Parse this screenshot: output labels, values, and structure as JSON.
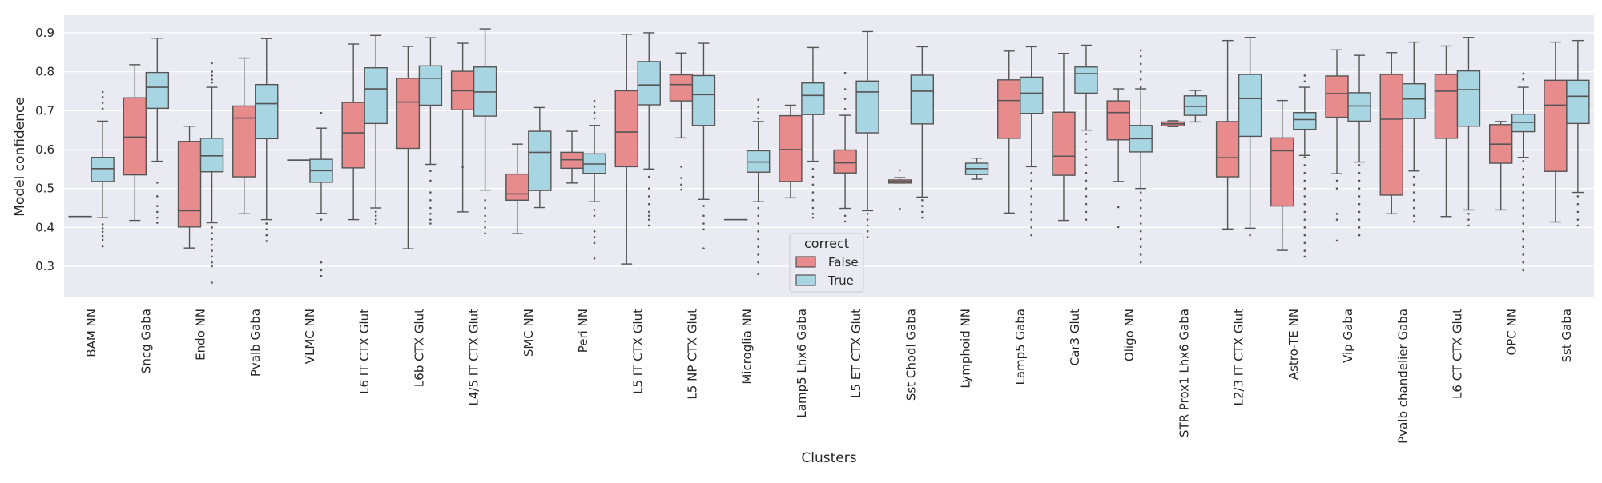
{
  "chart_data": {
    "type": "box",
    "title": "",
    "xlabel": "Clusters",
    "ylabel": "Model confidence",
    "ylim": [
      0.22,
      0.945
    ],
    "yticks": [
      0.3,
      0.4,
      0.5,
      0.6,
      0.7,
      0.8,
      0.9
    ],
    "grid": true,
    "legend": {
      "title": "correct",
      "placement": "lower-center",
      "entries": [
        {
          "label": "False",
          "color": "#e88b8d"
        },
        {
          "label": "True",
          "color": "#a8d5e2"
        }
      ]
    },
    "categories": [
      "BAM NN",
      "Sncg Gaba",
      "Endo NN",
      "Pvalb Gaba",
      "VLMC NN",
      "L6 IT CTX Glut",
      "L6b CTX Glut",
      "L4/5 IT CTX Glut",
      "SMC NN",
      "Peri NN",
      "L5 IT CTX Glut",
      "L5 NP CTX Glut",
      "Microglia NN",
      "Lamp5 Lhx6 Gaba",
      "L5 ET CTX Glut",
      "Sst Chodl Gaba",
      "Lymphoid NN",
      "Lamp5 Gaba",
      "Car3 Glut",
      "Oligo NN",
      "STR Prox1 Lhx6 Gaba",
      "L2/3 IT CTX Glut",
      "Astro-TE NN",
      "Vip Gaba",
      "Pvalb chandelier Gaba",
      "L6 CT CTX Glut",
      "OPC NN",
      "Sst Gaba"
    ],
    "series": [
      {
        "name": "False",
        "color": "#e88b8d",
        "boxes": [
          {
            "whislo": 0.428,
            "q1": 0.428,
            "med": 0.428,
            "q3": 0.428,
            "whishi": 0.428,
            "fliers": []
          },
          {
            "whislo": 0.418,
            "q1": 0.535,
            "med": 0.632,
            "q3": 0.733,
            "whishi": 0.818,
            "fliers": []
          },
          {
            "whislo": 0.347,
            "q1": 0.401,
            "med": 0.443,
            "q3": 0.621,
            "whishi": 0.66,
            "fliers": []
          },
          {
            "whislo": 0.435,
            "q1": 0.53,
            "med": 0.681,
            "q3": 0.712,
            "whishi": 0.835,
            "fliers": []
          },
          {
            "whislo": 0.573,
            "q1": 0.573,
            "med": 0.573,
            "q3": 0.573,
            "whishi": 0.573,
            "fliers": []
          },
          {
            "whislo": 0.42,
            "q1": 0.553,
            "med": 0.643,
            "q3": 0.721,
            "whishi": 0.871,
            "fliers": []
          },
          {
            "whislo": 0.345,
            "q1": 0.603,
            "med": 0.722,
            "q3": 0.783,
            "whishi": 0.865,
            "fliers": []
          },
          {
            "whislo": 0.44,
            "q1": 0.702,
            "med": 0.751,
            "q3": 0.801,
            "whishi": 0.873,
            "fliers": [
              0.555
            ]
          },
          {
            "whislo": 0.384,
            "q1": 0.47,
            "med": 0.486,
            "q3": 0.537,
            "whishi": 0.614,
            "fliers": []
          },
          {
            "whislo": 0.514,
            "q1": 0.552,
            "med": 0.574,
            "q3": 0.593,
            "whishi": 0.647,
            "fliers": []
          },
          {
            "whislo": 0.306,
            "q1": 0.556,
            "med": 0.645,
            "q3": 0.751,
            "whishi": 0.896,
            "fliers": []
          },
          {
            "whislo": 0.63,
            "q1": 0.725,
            "med": 0.767,
            "q3": 0.792,
            "whishi": 0.848,
            "fliers": [
              0.556,
              0.527,
              0.51,
              0.497
            ]
          },
          {
            "whislo": 0.42,
            "q1": 0.42,
            "med": 0.42,
            "q3": 0.42,
            "whishi": 0.42,
            "fliers": []
          },
          {
            "whislo": 0.476,
            "q1": 0.518,
            "med": 0.6,
            "q3": 0.687,
            "whishi": 0.714,
            "fliers": []
          },
          {
            "whislo": 0.449,
            "q1": 0.54,
            "med": 0.566,
            "q3": 0.599,
            "whishi": 0.688,
            "fliers": [
              0.797,
              0.755,
              0.73,
              0.704,
              0.43,
              0.415
            ]
          },
          {
            "whislo": 0.514,
            "q1": 0.514,
            "med": 0.518,
            "q3": 0.522,
            "whishi": 0.528,
            "fliers": [
              0.547,
              0.448
            ]
          },
          null,
          {
            "whislo": 0.437,
            "q1": 0.629,
            "med": 0.726,
            "q3": 0.779,
            "whishi": 0.853,
            "fliers": []
          },
          {
            "whislo": 0.418,
            "q1": 0.534,
            "med": 0.583,
            "q3": 0.696,
            "whishi": 0.847,
            "fliers": []
          },
          {
            "whislo": 0.518,
            "q1": 0.625,
            "med": 0.695,
            "q3": 0.725,
            "whishi": 0.756,
            "fliers": [
              0.452,
              0.401
            ]
          },
          {
            "whislo": 0.659,
            "q1": 0.661,
            "med": 0.666,
            "q3": 0.671,
            "whishi": 0.674,
            "fliers": []
          },
          {
            "whislo": 0.396,
            "q1": 0.53,
            "med": 0.579,
            "q3": 0.672,
            "whishi": 0.88,
            "fliers": []
          },
          {
            "whislo": 0.341,
            "q1": 0.455,
            "med": 0.597,
            "q3": 0.63,
            "whishi": 0.726,
            "fliers": []
          },
          {
            "whislo": 0.538,
            "q1": 0.683,
            "med": 0.744,
            "q3": 0.789,
            "whishi": 0.856,
            "fliers": [
              0.52,
              0.5,
              0.435,
              0.42,
              0.366
            ]
          },
          {
            "whislo": 0.435,
            "q1": 0.483,
            "med": 0.678,
            "q3": 0.793,
            "whishi": 0.849,
            "fliers": []
          },
          {
            "whislo": 0.428,
            "q1": 0.629,
            "med": 0.75,
            "q3": 0.793,
            "whishi": 0.866,
            "fliers": []
          },
          {
            "whislo": 0.445,
            "q1": 0.565,
            "med": 0.614,
            "q3": 0.664,
            "whishi": 0.672,
            "fliers": []
          },
          {
            "whislo": 0.414,
            "q1": 0.544,
            "med": 0.714,
            "q3": 0.778,
            "whishi": 0.876,
            "fliers": []
          }
        ]
      },
      {
        "name": "True",
        "color": "#a8d5e2",
        "boxes": [
          {
            "whislo": 0.425,
            "q1": 0.518,
            "med": 0.551,
            "q3": 0.58,
            "whishi": 0.673,
            "fliers": [
              0.748,
              0.735,
              0.72,
              0.705,
              0.408,
              0.398,
              0.389,
              0.378,
              0.368,
              0.351
            ]
          },
          {
            "whislo": 0.57,
            "q1": 0.706,
            "med": 0.76,
            "q3": 0.798,
            "whishi": 0.886,
            "fliers": [
              0.515,
              0.48,
              0.455,
              0.44,
              0.425,
              0.412
            ]
          },
          {
            "whislo": 0.412,
            "q1": 0.543,
            "med": 0.584,
            "q3": 0.629,
            "whishi": 0.76,
            "fliers": [
              0.822,
              0.8,
              0.79,
              0.78,
              0.772,
              0.4,
              0.385,
              0.37,
              0.355,
              0.34,
              0.325,
              0.31,
              0.3,
              0.258
            ]
          },
          {
            "whislo": 0.42,
            "q1": 0.628,
            "med": 0.718,
            "q3": 0.767,
            "whishi": 0.885,
            "fliers": [
              0.41,
              0.395,
              0.38,
              0.365
            ]
          },
          {
            "whislo": 0.436,
            "q1": 0.516,
            "med": 0.546,
            "q3": 0.575,
            "whishi": 0.655,
            "fliers": [
              0.694,
              0.42,
              0.31,
              0.29,
              0.275
            ]
          },
          {
            "whislo": 0.45,
            "q1": 0.667,
            "med": 0.756,
            "q3": 0.81,
            "whishi": 0.893,
            "fliers": [
              0.44,
              0.43,
              0.42,
              0.41
            ]
          },
          {
            "whislo": 0.562,
            "q1": 0.714,
            "med": 0.783,
            "q3": 0.815,
            "whishi": 0.887,
            "fliers": [
              0.545,
              0.52,
              0.49,
              0.47,
              0.45,
              0.435,
              0.42,
              0.41
            ]
          },
          {
            "whislo": 0.496,
            "q1": 0.686,
            "med": 0.748,
            "q3": 0.812,
            "whishi": 0.91,
            "fliers": [
              0.47,
              0.45,
              0.43,
              0.415,
              0.4,
              0.385
            ]
          },
          {
            "whislo": 0.451,
            "q1": 0.495,
            "med": 0.593,
            "q3": 0.647,
            "whishi": 0.708,
            "fliers": []
          },
          {
            "whislo": 0.466,
            "q1": 0.539,
            "med": 0.563,
            "q3": 0.589,
            "whishi": 0.662,
            "fliers": [
              0.725,
              0.71,
              0.695,
              0.68,
              0.445,
              0.43,
              0.39,
              0.375,
              0.36,
              0.32
            ]
          },
          {
            "whislo": 0.55,
            "q1": 0.715,
            "med": 0.766,
            "q3": 0.826,
            "whishi": 0.9,
            "fliers": [
              0.53,
              0.5,
              0.48,
              0.46,
              0.44,
              0.43,
              0.42,
              0.405
            ]
          },
          {
            "whislo": 0.472,
            "q1": 0.662,
            "med": 0.741,
            "q3": 0.79,
            "whishi": 0.873,
            "fliers": [
              0.455,
              0.43,
              0.41,
              0.395,
              0.346
            ]
          },
          {
            "whislo": 0.466,
            "q1": 0.542,
            "med": 0.568,
            "q3": 0.597,
            "whishi": 0.672,
            "fliers": [
              0.728,
              0.71,
              0.695,
              0.68,
              0.45,
              0.43,
              0.41,
              0.39,
              0.37,
              0.35,
              0.33,
              0.31,
              0.28
            ]
          },
          {
            "whislo": 0.57,
            "q1": 0.69,
            "med": 0.739,
            "q3": 0.771,
            "whishi": 0.862,
            "fliers": [
              0.55,
              0.53,
              0.51,
              0.49,
              0.47,
              0.45,
              0.435,
              0.425
            ]
          },
          {
            "whislo": 0.443,
            "q1": 0.643,
            "med": 0.748,
            "q3": 0.776,
            "whishi": 0.903,
            "fliers": [
              0.435,
              0.42,
              0.405,
              0.39,
              0.375
            ]
          },
          {
            "whislo": 0.478,
            "q1": 0.666,
            "med": 0.75,
            "q3": 0.791,
            "whishi": 0.864,
            "fliers": [
              0.47,
              0.455,
              0.44,
              0.425
            ]
          },
          {
            "whislo": 0.524,
            "q1": 0.536,
            "med": 0.551,
            "q3": 0.565,
            "whishi": 0.578,
            "fliers": []
          },
          {
            "whislo": 0.556,
            "q1": 0.693,
            "med": 0.745,
            "q3": 0.786,
            "whishi": 0.864,
            "fliers": [
              0.54,
              0.52,
              0.5,
              0.48,
              0.46,
              0.44,
              0.42,
              0.4,
              0.38
            ]
          },
          {
            "whislo": 0.65,
            "q1": 0.745,
            "med": 0.795,
            "q3": 0.812,
            "whishi": 0.868,
            "fliers": [
              0.64,
              0.62,
              0.6,
              0.58,
              0.56,
              0.54,
              0.52,
              0.5,
              0.48,
              0.46,
              0.44,
              0.42
            ]
          },
          {
            "whislo": 0.5,
            "q1": 0.594,
            "med": 0.628,
            "q3": 0.662,
            "whishi": 0.756,
            "fliers": [
              0.855,
              0.84,
              0.82,
              0.8,
              0.78,
              0.76,
              0.49,
              0.47,
              0.45,
              0.43,
              0.41,
              0.39,
              0.37,
              0.35,
              0.33,
              0.31
            ]
          },
          {
            "whislo": 0.671,
            "q1": 0.688,
            "med": 0.711,
            "q3": 0.738,
            "whishi": 0.752,
            "fliers": []
          },
          {
            "whislo": 0.398,
            "q1": 0.634,
            "med": 0.731,
            "q3": 0.793,
            "whishi": 0.888,
            "fliers": [
              0.38
            ]
          },
          {
            "whislo": 0.585,
            "q1": 0.652,
            "med": 0.677,
            "q3": 0.695,
            "whishi": 0.76,
            "fliers": [
              0.79,
              0.775,
              0.58,
              0.56,
              0.54,
              0.52,
              0.5,
              0.48,
              0.46,
              0.44,
              0.42,
              0.4,
              0.38,
              0.36,
              0.34,
              0.325
            ]
          },
          {
            "whislo": 0.568,
            "q1": 0.673,
            "med": 0.712,
            "q3": 0.746,
            "whishi": 0.842,
            "fliers": [
              0.56,
              0.54,
              0.52,
              0.5,
              0.48,
              0.46,
              0.44,
              0.42,
              0.4,
              0.38
            ]
          },
          {
            "whislo": 0.545,
            "q1": 0.68,
            "med": 0.73,
            "q3": 0.769,
            "whishi": 0.876,
            "fliers": [
              0.53,
              0.51,
              0.49,
              0.47,
              0.45,
              0.43,
              0.415
            ]
          },
          {
            "whislo": 0.445,
            "q1": 0.66,
            "med": 0.754,
            "q3": 0.802,
            "whishi": 0.888,
            "fliers": [
              0.435,
              0.42,
              0.405
            ]
          },
          {
            "whislo": 0.58,
            "q1": 0.646,
            "med": 0.67,
            "q3": 0.691,
            "whishi": 0.76,
            "fliers": [
              0.795,
              0.78,
              0.57,
              0.55,
              0.53,
              0.51,
              0.49,
              0.47,
              0.45,
              0.43,
              0.41,
              0.39,
              0.37,
              0.35,
              0.33,
              0.31,
              0.29
            ]
          },
          {
            "whislo": 0.49,
            "q1": 0.667,
            "med": 0.737,
            "q3": 0.778,
            "whishi": 0.88,
            "fliers": [
              0.48,
              0.46,
              0.44,
              0.42,
              0.405
            ]
          }
        ]
      }
    ]
  }
}
